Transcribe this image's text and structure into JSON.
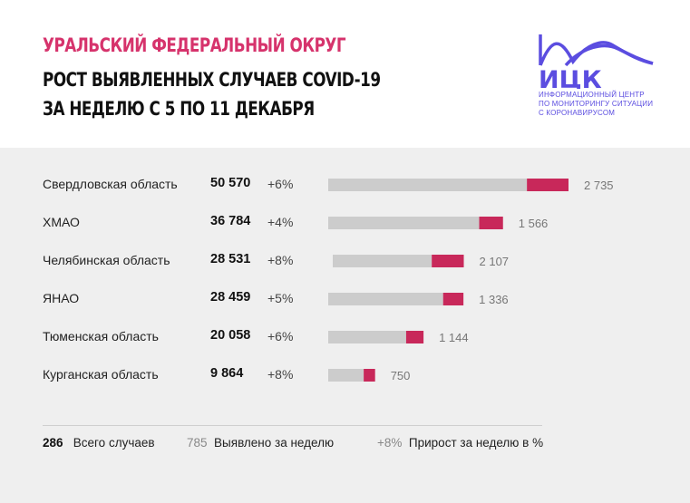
{
  "header": {
    "line1": "УРАЛЬСКИЙ ФЕДЕРАЛЬНЫЙ ОКРУГ",
    "line2": "РОСТ ВЫЯВЛЕННЫХ СЛУЧАЕВ COVID-19",
    "line3": "ЗА НЕДЕЛЮ С 5 ПО 11 ДЕКАБРЯ",
    "accent_color": "#d6336c"
  },
  "logo": {
    "abbr": "ИЦК",
    "line1": "ИНФОРМАЦИОННЫЙ ЦЕНТР",
    "line2": "ПО МОНИТОРИНГУ СИТУАЦИИ",
    "line3": "С КОРОНАВИРУСОМ",
    "color": "#5b4de0"
  },
  "chart_data": {
    "type": "bar",
    "orientation": "horizontal",
    "categories": [
      "Свердловская область",
      "ХМАО",
      "Челябинская область",
      "ЯНАО",
      "Тюменская область",
      "Курганская область"
    ],
    "totals": [
      "50 570",
      "36 784",
      "28 531",
      "28 459",
      "20 058",
      "9 864"
    ],
    "growth_labels": [
      "+6%",
      "+4%",
      "+8%",
      "+5%",
      "+6%",
      "+8%"
    ],
    "new_labels": [
      "2 735",
      "1 566",
      "2 107",
      "1 336",
      "1 144",
      "750"
    ],
    "series": [
      {
        "values": [
          50570,
          36784,
          28531,
          28459,
          20058,
          9864
        ],
        "color": "#cccccc"
      },
      {
        "values": [
          2735,
          1566,
          2107,
          1336,
          1144,
          750
        ],
        "color": "#c8285a"
      }
    ]
  },
  "legend": {
    "total_num": "286",
    "total_label": "Всего случаев",
    "new_num": "785",
    "new_label": "Выявлено за неделю",
    "growth_num": "+8%",
    "growth_label": "Прирост за неделю в %"
  }
}
